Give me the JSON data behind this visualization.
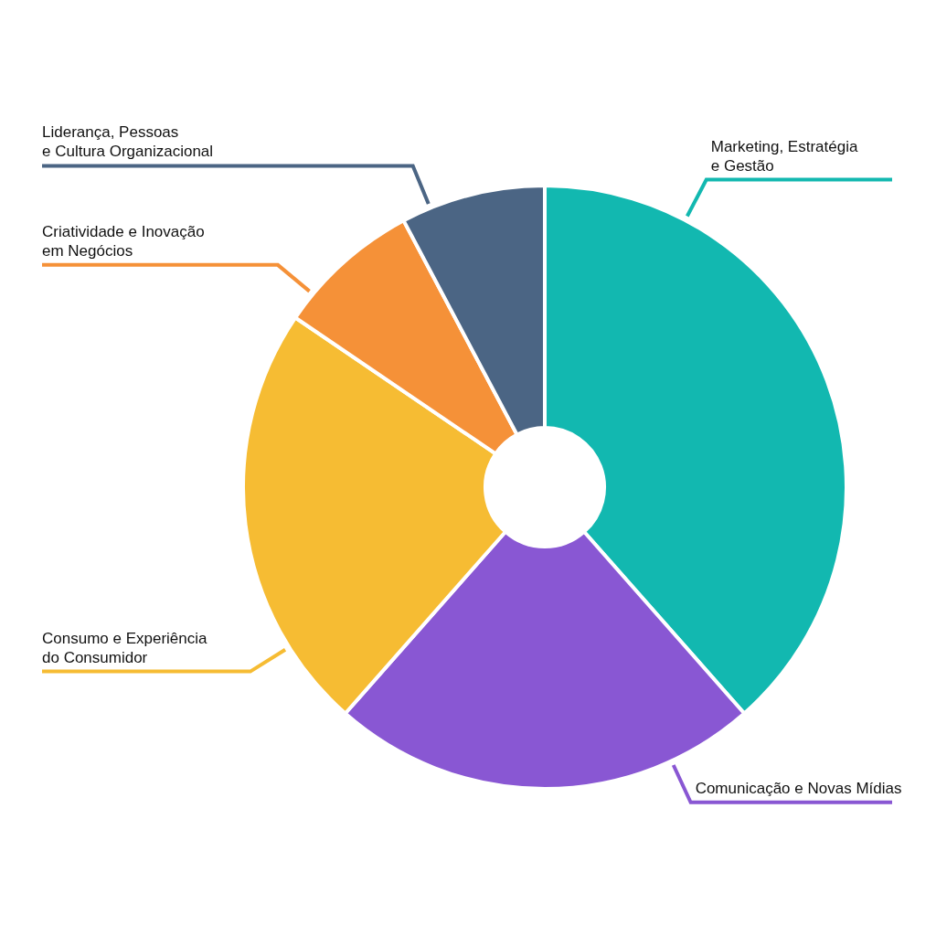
{
  "chart_data": {
    "type": "donut",
    "categories": [
      "Marketing, Estratégia\ne Gestão",
      "Comunicação e Novas Mídias",
      "Consumo e Experiência\ndo Consumidor",
      "Criatividade e Inovação\nem Negócios",
      "Liderança, Pessoas\ne Cultura Organizacional"
    ],
    "values": [
      38.5,
      23,
      23,
      7.75,
      7.75
    ],
    "colors": [
      "#12b8b0",
      "#8957d3",
      "#f6bc33",
      "#f59138",
      "#4b6584"
    ]
  }
}
